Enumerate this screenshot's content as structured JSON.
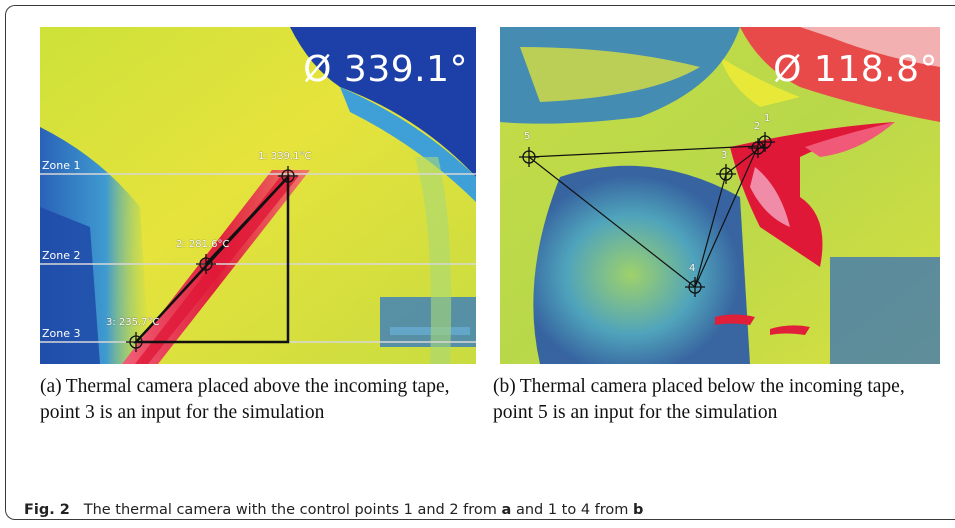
{
  "panel_a": {
    "reading": "Ø 339.1°",
    "zones": [
      "Zone 1",
      "Zone 2",
      "Zone 3"
    ],
    "points": [
      {
        "label": "1: 339.1°C"
      },
      {
        "label": "2: 281.6°C"
      },
      {
        "label": "3: 235.7°C"
      }
    ]
  },
  "panel_b": {
    "reading": "Ø 118.8°",
    "points": [
      {
        "label": "1"
      },
      {
        "label": "2"
      },
      {
        "label": "3"
      },
      {
        "label": "4"
      },
      {
        "label": "5"
      }
    ]
  },
  "captions": {
    "a_tag": "(a)",
    "a_text": "Thermal camera placed above the incoming tape, point 3 is an input for the simulation",
    "b_tag": "(b)",
    "b_text": "Thermal camera placed below the incoming tape, point 5 is an input for the simulation"
  },
  "figure_caption": {
    "label": "Fig. 2",
    "text_1": "The thermal camera with the control points 1 and 2 from",
    "ref_a": "a",
    "text_2": "and 1 to 4 from",
    "ref_b": "b"
  },
  "colors": {
    "hot": "#e0203a",
    "warm": "#e8e838",
    "mid": "#9cd45a",
    "cool": "#2a78c8",
    "cold": "#1a3aa0"
  }
}
